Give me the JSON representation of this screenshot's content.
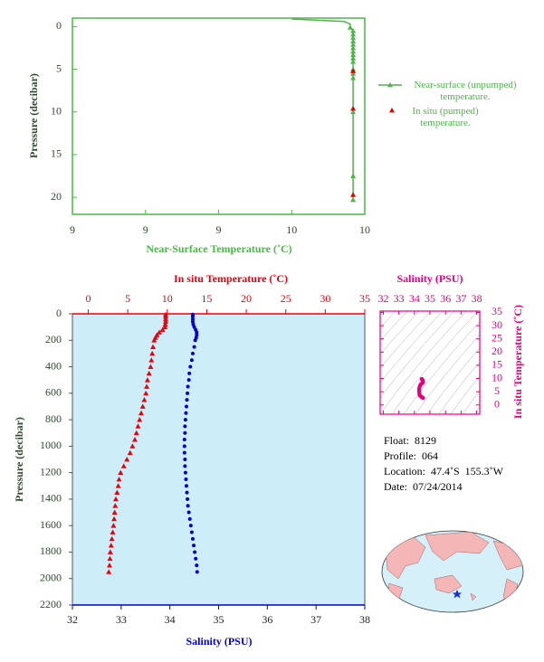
{
  "chart_data": [
    {
      "type": "line",
      "x_label": "Near-Surface Temperature (˚C)",
      "y_label": "Pressure (decibar)",
      "xlim": [
        9,
        10
      ],
      "xticks": [
        {
          "value": 9,
          "label": "9"
        },
        {
          "value": 9.25,
          "label": "9"
        },
        {
          "value": 9.5,
          "label": "9"
        },
        {
          "value": 9.75,
          "label": "10"
        },
        {
          "value": 10,
          "label": "10"
        }
      ],
      "ylim": [
        22,
        -1
      ],
      "yticks": [
        0,
        5,
        10,
        15,
        20
      ],
      "axis_color": "#4cb648",
      "series": [
        {
          "name": "Near-surface (unpumped) temperature.",
          "color": "#4cb648",
          "x": [
            9.75,
            9.93,
            9.95,
            9.95,
            9.96,
            9.96,
            9.96,
            9.96,
            9.96,
            9.96,
            9.96,
            9.96,
            9.96,
            9.96,
            9.96,
            9.96,
            9.96,
            9.96,
            9.96,
            9.96
          ],
          "y": [
            -0.9,
            -0.6,
            -0.3,
            0.1,
            0.5,
            0.9,
            1.3,
            1.7,
            2.1,
            2.5,
            2.9,
            3.3,
            3.7,
            4.1,
            5.0,
            5.5,
            6.0,
            10.0,
            17.5,
            20.3
          ]
        },
        {
          "name": "In situ (pumped) temperature.",
          "color": "#e00000",
          "x": [
            9.96,
            9.96,
            9.96
          ],
          "y": [
            5.2,
            9.6,
            19.7
          ]
        }
      ]
    },
    {
      "type": "profile",
      "temperature_label": "In situ Temperature (˚C)",
      "salinity_label": "Salinity (PSU)",
      "y_label": "Pressure (decibar)",
      "templim": [
        -2,
        35
      ],
      "tempticks": [
        0,
        5,
        10,
        15,
        20,
        25,
        30,
        35
      ],
      "xlim": [
        32,
        38
      ],
      "xticks": [
        32,
        33,
        34,
        35,
        36,
        37,
        38
      ],
      "ylim": [
        2200,
        0
      ],
      "yticks": [
        0,
        200,
        400,
        600,
        800,
        1000,
        1200,
        1400,
        1600,
        1800,
        2000,
        2200
      ],
      "background": "#cdeef9",
      "pressure": [
        5,
        20,
        40,
        60,
        80,
        100,
        120,
        140,
        160,
        180,
        200,
        250,
        300,
        350,
        400,
        450,
        500,
        550,
        600,
        650,
        700,
        750,
        800,
        850,
        900,
        950,
        1000,
        1050,
        1100,
        1150,
        1200,
        1250,
        1300,
        1350,
        1400,
        1450,
        1500,
        1550,
        1600,
        1650,
        1700,
        1750,
        1800,
        1850,
        1900,
        1950
      ],
      "temperature": {
        "color": "#e8000b",
        "values": [
          9.8,
          9.8,
          9.8,
          9.8,
          9.75,
          9.7,
          9.4,
          9.0,
          8.7,
          8.5,
          8.35,
          8.2,
          8.1,
          8.0,
          7.9,
          7.7,
          7.5,
          7.4,
          7.3,
          7.1,
          6.9,
          6.7,
          6.5,
          6.3,
          6.1,
          5.9,
          5.6,
          5.3,
          4.9,
          4.5,
          4.1,
          3.9,
          3.8,
          3.65,
          3.5,
          3.42,
          3.35,
          3.28,
          3.2,
          3.1,
          3.0,
          2.9,
          2.8,
          2.75,
          2.7,
          2.6
        ]
      },
      "salinity": {
        "color": "#0000d0",
        "values": [
          34.47,
          34.47,
          34.47,
          34.47,
          34.48,
          34.5,
          34.53,
          34.55,
          34.55,
          34.54,
          34.52,
          34.5,
          34.47,
          34.45,
          34.42,
          34.4,
          34.39,
          34.37,
          34.36,
          34.35,
          34.34,
          34.33,
          34.32,
          34.31,
          34.31,
          34.3,
          34.3,
          34.3,
          34.31,
          34.31,
          34.32,
          34.33,
          34.34,
          34.35,
          34.36,
          34.37,
          34.39,
          34.41,
          34.43,
          34.45,
          34.47,
          34.49,
          34.51,
          34.53,
          34.55,
          34.56
        ]
      }
    },
    {
      "type": "ts",
      "x_label": "Salinity (PSU)",
      "y_label": "In situ Temperature (˚C)",
      "xlim": [
        31.8,
        38.2
      ],
      "xticks": [
        32,
        33,
        34,
        35,
        36,
        37,
        38
      ],
      "ylim": [
        -3.5,
        35.5
      ],
      "yticks": [
        0,
        5,
        10,
        15,
        20,
        25,
        30,
        35
      ],
      "color": "#e6007e"
    }
  ],
  "info": [
    {
      "label": "Float:",
      "value": "8129"
    },
    {
      "label": "Profile:",
      "value": "064"
    },
    {
      "label": "Location:",
      "value": "47.4˚S  155.3˚W"
    },
    {
      "label": "Date:",
      "value": "07/24/2014"
    }
  ]
}
